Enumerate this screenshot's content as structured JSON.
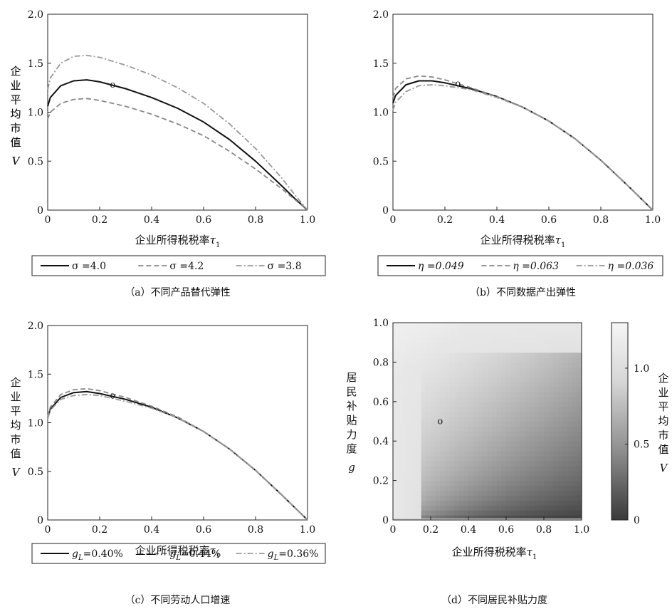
{
  "figure": {
    "panels": [
      "a",
      "b",
      "c",
      "d"
    ]
  },
  "chart_data": [
    {
      "id": "a",
      "type": "line",
      "caption": "（a）不同产品替代弹性",
      "xlabel": "企业所得税税率τ",
      "xlabel_sub": "1",
      "ylabel": "企业平均市值",
      "ylabel_var": "V",
      "xlim": [
        0,
        1.0
      ],
      "ylim": [
        0,
        2.0
      ],
      "xticks": [
        "0",
        "0.2",
        "0.4",
        "0.6",
        "0.8",
        "1.0"
      ],
      "yticks": [
        "0",
        "0.5",
        "1.0",
        "1.5",
        "2.0"
      ],
      "marker": {
        "label": "o",
        "x": 0.25,
        "y": 1.28
      },
      "x": [
        0,
        0.01,
        0.05,
        0.1,
        0.15,
        0.2,
        0.3,
        0.4,
        0.5,
        0.6,
        0.7,
        0.8,
        0.9,
        0.95,
        1.0
      ],
      "series": [
        {
          "name": "σ =4.0",
          "style": "solid",
          "color": "#111111",
          "values": [
            1.06,
            1.15,
            1.27,
            1.32,
            1.33,
            1.31,
            1.24,
            1.15,
            1.04,
            0.9,
            0.72,
            0.5,
            0.25,
            0.12,
            0.0
          ]
        },
        {
          "name": "σ =4.2",
          "style": "dashed",
          "color": "#888888",
          "values": [
            0.93,
            1.0,
            1.09,
            1.13,
            1.14,
            1.12,
            1.06,
            0.98,
            0.88,
            0.76,
            0.6,
            0.42,
            0.22,
            0.11,
            0.0
          ]
        },
        {
          "name": "σ =3.8",
          "style": "dashdot",
          "color": "#999999",
          "values": [
            1.23,
            1.35,
            1.5,
            1.57,
            1.58,
            1.56,
            1.48,
            1.38,
            1.25,
            1.09,
            0.88,
            0.63,
            0.33,
            0.16,
            0.0
          ]
        }
      ]
    },
    {
      "id": "b",
      "type": "line",
      "caption": "（b）不同数据产出弹性",
      "xlabel": "企业所得税税率τ",
      "xlabel_sub": "1",
      "ylabel": "企业平均市值",
      "ylabel_var": "V",
      "xlim": [
        0,
        1.0
      ],
      "ylim": [
        0,
        2.0
      ],
      "xticks": [
        "0",
        "0.2",
        "0.4",
        "0.6",
        "0.8",
        "1.0"
      ],
      "yticks": [
        "0",
        "0.5",
        "1.0",
        "1.5",
        "2.0"
      ],
      "marker": {
        "label": "o",
        "x": 0.25,
        "y": 1.29
      },
      "x": [
        0,
        0.01,
        0.05,
        0.1,
        0.15,
        0.2,
        0.3,
        0.4,
        0.5,
        0.6,
        0.7,
        0.8,
        0.9,
        0.95,
        1.0
      ],
      "series": [
        {
          "name": "η =0.049",
          "style": "solid",
          "color": "#111111",
          "values": [
            1.09,
            1.17,
            1.28,
            1.32,
            1.32,
            1.3,
            1.24,
            1.16,
            1.05,
            0.91,
            0.73,
            0.51,
            0.26,
            0.13,
            0.0
          ]
        },
        {
          "name": "η =0.063",
          "style": "dashed",
          "color": "#888888",
          "values": [
            1.15,
            1.24,
            1.34,
            1.37,
            1.36,
            1.33,
            1.25,
            1.16,
            1.05,
            0.91,
            0.73,
            0.51,
            0.26,
            0.13,
            0.0
          ]
        },
        {
          "name": "η =0.036",
          "style": "dashdot",
          "color": "#999999",
          "values": [
            1.02,
            1.1,
            1.21,
            1.27,
            1.28,
            1.27,
            1.23,
            1.15,
            1.05,
            0.91,
            0.73,
            0.51,
            0.26,
            0.13,
            0.0
          ]
        }
      ]
    },
    {
      "id": "c",
      "type": "line",
      "caption": "（c）不同劳动人口增速",
      "xlabel": "企业所得税税率τ",
      "xlabel_sub": "1",
      "ylabel": "企业平均市值",
      "ylabel_var": "V",
      "xlim": [
        0,
        1.0
      ],
      "ylim": [
        0,
        2.0
      ],
      "xticks": [
        "0",
        "0.2",
        "0.4",
        "0.6",
        "0.8",
        "1.0"
      ],
      "yticks": [
        "0",
        "0.5",
        "1.0",
        "1.5",
        "2.0"
      ],
      "marker": {
        "label": "o",
        "x": 0.25,
        "y": 1.28
      },
      "x": [
        0,
        0.01,
        0.05,
        0.1,
        0.15,
        0.2,
        0.3,
        0.4,
        0.5,
        0.6,
        0.7,
        0.8,
        0.9,
        0.95,
        1.0
      ],
      "series": [
        {
          "name": "g",
          "name_sub": "L",
          "name_rest": "=0.40%",
          "style": "solid",
          "color": "#111111",
          "values": [
            1.05,
            1.14,
            1.26,
            1.31,
            1.32,
            1.3,
            1.24,
            1.16,
            1.05,
            0.91,
            0.73,
            0.51,
            0.26,
            0.13,
            0.0
          ]
        },
        {
          "name": "g",
          "name_sub": "L",
          "name_rest": "=0.44%",
          "style": "dashed",
          "color": "#888888",
          "values": [
            1.06,
            1.16,
            1.29,
            1.34,
            1.35,
            1.33,
            1.26,
            1.17,
            1.06,
            0.91,
            0.73,
            0.51,
            0.26,
            0.13,
            0.0
          ]
        },
        {
          "name": "g",
          "name_sub": "L",
          "name_rest": "=0.36%",
          "style": "dashdot",
          "color": "#999999",
          "values": [
            1.04,
            1.13,
            1.24,
            1.28,
            1.29,
            1.28,
            1.22,
            1.15,
            1.05,
            0.91,
            0.73,
            0.51,
            0.26,
            0.13,
            0.0
          ]
        }
      ]
    },
    {
      "id": "d",
      "type": "heatmap",
      "caption": "（d）不同居民补贴力度",
      "xlabel": "企业所得税税率τ",
      "xlabel_sub": "1",
      "ylabel": "居民补贴力度",
      "ylabel_var": "g",
      "xlim": [
        0,
        1.0
      ],
      "ylim": [
        0,
        1.0
      ],
      "xticks": [
        "0",
        "0.2",
        "0.4",
        "0.6",
        "0.8",
        "1.0"
      ],
      "yticks": [
        "0",
        "0.2",
        "0.4",
        "0.6",
        "0.8",
        "1.0"
      ],
      "marker": {
        "label": "o",
        "x": 0.25,
        "y": 0.5
      },
      "colorbar": {
        "label": "企业平均市值",
        "label_var": "V",
        "ticks": [
          "0",
          "0.5",
          "1.0"
        ],
        "range": [
          0,
          1.3
        ],
        "colors": [
          "#3a3a3a",
          "#f4f4f4"
        ]
      }
    }
  ]
}
